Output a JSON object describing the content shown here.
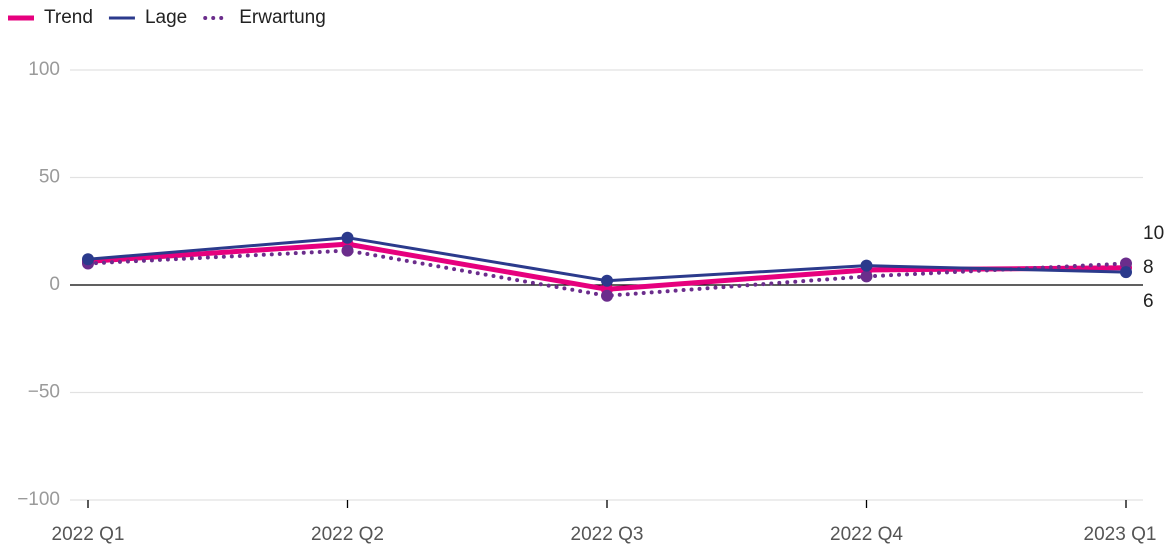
{
  "chart_data": {
    "type": "line",
    "categories": [
      "2022 Q1",
      "2022 Q2",
      "2022 Q3",
      "2022 Q4",
      "2023 Q1"
    ],
    "series": [
      {
        "name": "Trend",
        "color": "#e6007e",
        "style": "solid",
        "values": [
          11,
          19,
          -2,
          7,
          8
        ]
      },
      {
        "name": "Lage",
        "color": "#2b3a8c",
        "style": "solid",
        "values": [
          12,
          22,
          2,
          9,
          6
        ]
      },
      {
        "name": "Erwartung",
        "color": "#6b2d8c",
        "style": "dotted",
        "values": [
          10,
          16,
          -5,
          4,
          10
        ]
      }
    ],
    "ylim": [
      -100,
      100
    ],
    "yticks": [
      {
        "value": -100,
        "label": "−100"
      },
      {
        "value": -50,
        "label": "−50"
      },
      0,
      50,
      100
    ],
    "grid": true
  }
}
